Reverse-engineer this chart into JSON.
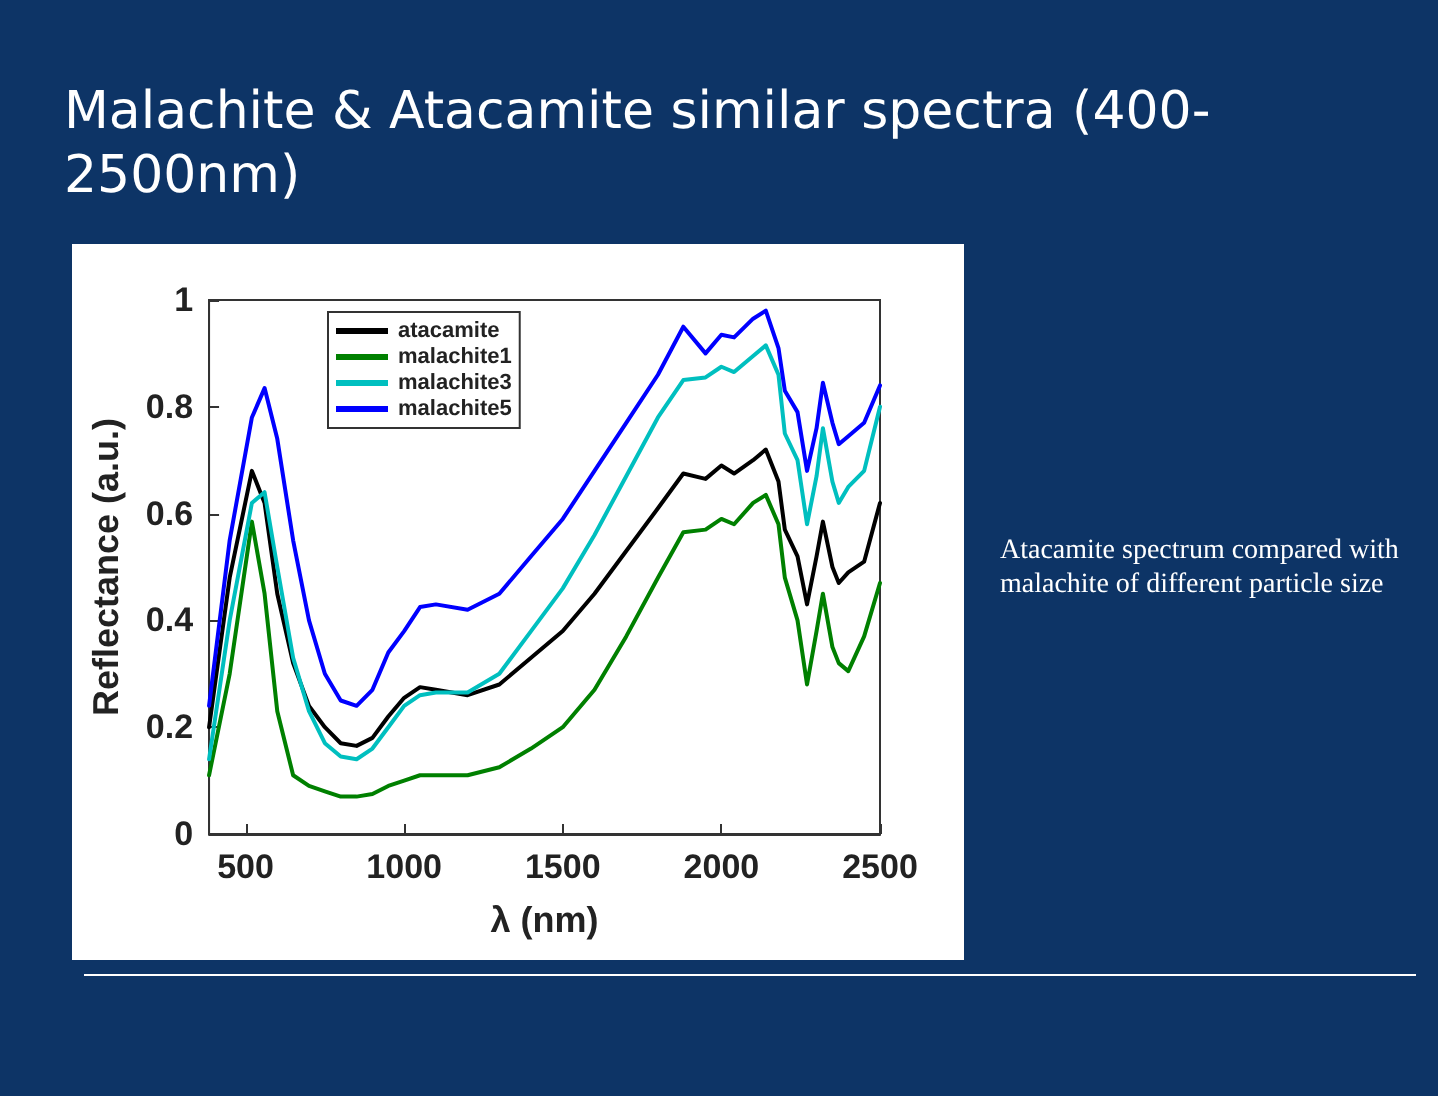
{
  "chart_data": {
    "type": "line",
    "title": "Malachite & Atacamite similar spectra (400-2500nm)",
    "xlabel": "λ (nm)",
    "ylabel": "Reflectance (a.u.)",
    "annotations": [
      "Atacamite spectrum compared with malachite of different particle size"
    ],
    "x": [
      385,
      450,
      520,
      560,
      600,
      650,
      700,
      750,
      800,
      850,
      900,
      950,
      1000,
      1050,
      1100,
      1200,
      1300,
      1400,
      1500,
      1600,
      1700,
      1800,
      1880,
      1950,
      2000,
      2040,
      2100,
      2140,
      2180,
      2200,
      2240,
      2270,
      2300,
      2320,
      2350,
      2370,
      2400,
      2450,
      2500
    ],
    "series": [
      {
        "name": "atacamite",
        "color": "#000000",
        "values": [
          0.2,
          0.48,
          0.68,
          0.62,
          0.45,
          0.32,
          0.24,
          0.2,
          0.17,
          0.165,
          0.18,
          0.22,
          0.255,
          0.275,
          0.27,
          0.26,
          0.28,
          0.33,
          0.38,
          0.45,
          0.53,
          0.61,
          0.675,
          0.665,
          0.69,
          0.675,
          0.7,
          0.72,
          0.66,
          0.57,
          0.52,
          0.43,
          0.52,
          0.585,
          0.5,
          0.47,
          0.49,
          0.51,
          0.62
        ]
      },
      {
        "name": "malachite1",
        "color": "#008000",
        "values": [
          0.11,
          0.3,
          0.585,
          0.45,
          0.23,
          0.11,
          0.09,
          0.08,
          0.07,
          0.07,
          0.075,
          0.09,
          0.1,
          0.11,
          0.11,
          0.11,
          0.125,
          0.16,
          0.2,
          0.27,
          0.37,
          0.48,
          0.565,
          0.57,
          0.59,
          0.58,
          0.62,
          0.635,
          0.58,
          0.48,
          0.4,
          0.28,
          0.38,
          0.45,
          0.35,
          0.32,
          0.305,
          0.37,
          0.47
        ]
      },
      {
        "name": "malachite3",
        "color": "#00bfbf",
        "values": [
          0.14,
          0.4,
          0.62,
          0.64,
          0.5,
          0.33,
          0.23,
          0.17,
          0.145,
          0.14,
          0.16,
          0.2,
          0.24,
          0.26,
          0.265,
          0.265,
          0.3,
          0.38,
          0.46,
          0.56,
          0.67,
          0.78,
          0.85,
          0.855,
          0.875,
          0.865,
          0.895,
          0.915,
          0.86,
          0.75,
          0.7,
          0.58,
          0.67,
          0.76,
          0.66,
          0.62,
          0.65,
          0.68,
          0.8
        ]
      },
      {
        "name": "malachite5",
        "color": "#0000ff",
        "values": [
          0.24,
          0.55,
          0.78,
          0.835,
          0.74,
          0.55,
          0.4,
          0.3,
          0.25,
          0.24,
          0.27,
          0.34,
          0.38,
          0.425,
          0.43,
          0.42,
          0.45,
          0.52,
          0.59,
          0.68,
          0.77,
          0.86,
          0.95,
          0.9,
          0.935,
          0.93,
          0.965,
          0.98,
          0.91,
          0.83,
          0.79,
          0.68,
          0.76,
          0.845,
          0.77,
          0.73,
          0.745,
          0.77,
          0.84
        ]
      }
    ],
    "xlim": [
      385,
      2500
    ],
    "xticks": [
      500,
      1000,
      1500,
      2000,
      2500
    ],
    "ylim": [
      0,
      1
    ],
    "yticks": [
      0,
      0.2,
      0.4,
      0.6,
      0.8,
      1
    ],
    "grid": false,
    "legend": "top left",
    "marker": "none",
    "line_style": "solid"
  }
}
